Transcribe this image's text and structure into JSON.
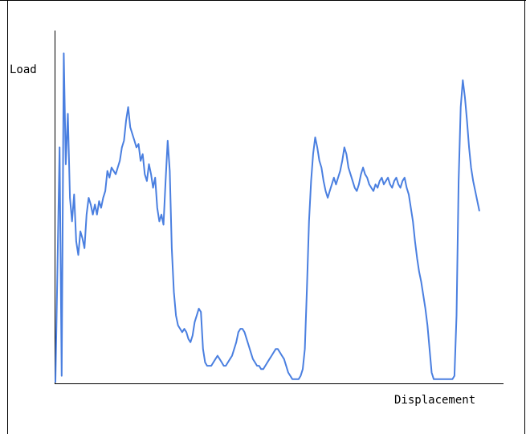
{
  "chart_data": {
    "type": "line",
    "title": "",
    "xlabel": "Displacement",
    "ylabel": "Load",
    "xlim": [
      0,
      1000
    ],
    "ylim": [
      0,
      100
    ],
    "grid": false,
    "legend": "none",
    "tick_labels": "none",
    "series": [
      {
        "color": "#4a7fe0",
        "points": [
          [
            0,
            0
          ],
          [
            2,
            35
          ],
          [
            4,
            70
          ],
          [
            6,
            2
          ],
          [
            8,
            98
          ],
          [
            10,
            65
          ],
          [
            12,
            80
          ],
          [
            14,
            55
          ],
          [
            16,
            48
          ],
          [
            18,
            56
          ],
          [
            20,
            42
          ],
          [
            22,
            38
          ],
          [
            24,
            45
          ],
          [
            26,
            43
          ],
          [
            28,
            40
          ],
          [
            30,
            50
          ],
          [
            32,
            55
          ],
          [
            34,
            53
          ],
          [
            36,
            50
          ],
          [
            38,
            53
          ],
          [
            40,
            50
          ],
          [
            42,
            54
          ],
          [
            44,
            52
          ],
          [
            46,
            55
          ],
          [
            48,
            57
          ],
          [
            50,
            63
          ],
          [
            52,
            61
          ],
          [
            54,
            64
          ],
          [
            56,
            63
          ],
          [
            58,
            62
          ],
          [
            60,
            64
          ],
          [
            62,
            66
          ],
          [
            64,
            70
          ],
          [
            66,
            72
          ],
          [
            68,
            78
          ],
          [
            70,
            82
          ],
          [
            72,
            76
          ],
          [
            74,
            74
          ],
          [
            76,
            72
          ],
          [
            78,
            70
          ],
          [
            80,
            71
          ],
          [
            82,
            66
          ],
          [
            84,
            68
          ],
          [
            86,
            62
          ],
          [
            88,
            60
          ],
          [
            90,
            65
          ],
          [
            92,
            62
          ],
          [
            94,
            58
          ],
          [
            96,
            61
          ],
          [
            98,
            52
          ],
          [
            100,
            48
          ],
          [
            102,
            50
          ],
          [
            104,
            47
          ],
          [
            106,
            60
          ],
          [
            108,
            72
          ],
          [
            110,
            63
          ],
          [
            112,
            40
          ],
          [
            114,
            27
          ],
          [
            116,
            20
          ],
          [
            118,
            17
          ],
          [
            120,
            16
          ],
          [
            122,
            15
          ],
          [
            124,
            16
          ],
          [
            126,
            15
          ],
          [
            128,
            13
          ],
          [
            130,
            12
          ],
          [
            132,
            14
          ],
          [
            134,
            18
          ],
          [
            136,
            20
          ],
          [
            138,
            22
          ],
          [
            140,
            21
          ],
          [
            142,
            10
          ],
          [
            144,
            6
          ],
          [
            146,
            5
          ],
          [
            148,
            5
          ],
          [
            150,
            5
          ],
          [
            152,
            6
          ],
          [
            154,
            7
          ],
          [
            156,
            8
          ],
          [
            158,
            7
          ],
          [
            160,
            6
          ],
          [
            162,
            5
          ],
          [
            164,
            5
          ],
          [
            166,
            6
          ],
          [
            168,
            7
          ],
          [
            170,
            8
          ],
          [
            172,
            10
          ],
          [
            174,
            12
          ],
          [
            176,
            15
          ],
          [
            178,
            16
          ],
          [
            180,
            16
          ],
          [
            182,
            15
          ],
          [
            184,
            13
          ],
          [
            186,
            11
          ],
          [
            188,
            9
          ],
          [
            190,
            7
          ],
          [
            192,
            6
          ],
          [
            194,
            5
          ],
          [
            196,
            5
          ],
          [
            198,
            4
          ],
          [
            200,
            4
          ],
          [
            202,
            5
          ],
          [
            204,
            6
          ],
          [
            206,
            7
          ],
          [
            208,
            8
          ],
          [
            210,
            9
          ],
          [
            212,
            10
          ],
          [
            214,
            10
          ],
          [
            216,
            9
          ],
          [
            218,
            8
          ],
          [
            220,
            7
          ],
          [
            222,
            5
          ],
          [
            224,
            3
          ],
          [
            226,
            2
          ],
          [
            228,
            1
          ],
          [
            230,
            1
          ],
          [
            232,
            1
          ],
          [
            234,
            1
          ],
          [
            236,
            2
          ],
          [
            238,
            4
          ],
          [
            240,
            10
          ],
          [
            242,
            28
          ],
          [
            244,
            48
          ],
          [
            246,
            60
          ],
          [
            248,
            68
          ],
          [
            250,
            73
          ],
          [
            252,
            70
          ],
          [
            254,
            66
          ],
          [
            256,
            64
          ],
          [
            258,
            60
          ],
          [
            260,
            57
          ],
          [
            262,
            55
          ],
          [
            264,
            57
          ],
          [
            266,
            59
          ],
          [
            268,
            61
          ],
          [
            270,
            59
          ],
          [
            272,
            61
          ],
          [
            274,
            63
          ],
          [
            276,
            66
          ],
          [
            278,
            70
          ],
          [
            280,
            68
          ],
          [
            282,
            64
          ],
          [
            284,
            62
          ],
          [
            286,
            60
          ],
          [
            288,
            58
          ],
          [
            290,
            57
          ],
          [
            292,
            59
          ],
          [
            294,
            62
          ],
          [
            296,
            64
          ],
          [
            298,
            62
          ],
          [
            300,
            61
          ],
          [
            302,
            59
          ],
          [
            304,
            58
          ],
          [
            306,
            57
          ],
          [
            308,
            59
          ],
          [
            310,
            58
          ],
          [
            312,
            60
          ],
          [
            314,
            61
          ],
          [
            316,
            59
          ],
          [
            318,
            60
          ],
          [
            320,
            61
          ],
          [
            322,
            59
          ],
          [
            324,
            58
          ],
          [
            326,
            60
          ],
          [
            328,
            61
          ],
          [
            330,
            59
          ],
          [
            332,
            58
          ],
          [
            334,
            60
          ],
          [
            336,
            61
          ],
          [
            338,
            58
          ],
          [
            340,
            56
          ],
          [
            342,
            52
          ],
          [
            344,
            48
          ],
          [
            346,
            42
          ],
          [
            348,
            37
          ],
          [
            350,
            33
          ],
          [
            352,
            30
          ],
          [
            354,
            26
          ],
          [
            356,
            22
          ],
          [
            358,
            17
          ],
          [
            360,
            10
          ],
          [
            362,
            3
          ],
          [
            364,
            1
          ],
          [
            366,
            1
          ],
          [
            368,
            1
          ],
          [
            370,
            1
          ],
          [
            372,
            1
          ],
          [
            374,
            1
          ],
          [
            376,
            1
          ],
          [
            378,
            1
          ],
          [
            380,
            1
          ],
          [
            382,
            1
          ],
          [
            384,
            2
          ],
          [
            386,
            20
          ],
          [
            388,
            60
          ],
          [
            390,
            82
          ],
          [
            392,
            90
          ],
          [
            394,
            85
          ],
          [
            396,
            78
          ],
          [
            398,
            70
          ],
          [
            400,
            64
          ],
          [
            402,
            60
          ],
          [
            404,
            57
          ],
          [
            406,
            54
          ],
          [
            408,
            51
          ]
        ]
      }
    ]
  }
}
